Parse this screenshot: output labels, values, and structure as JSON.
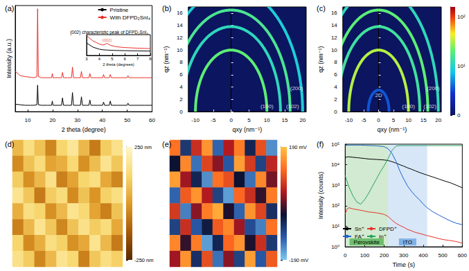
{
  "chart_data": [
    {
      "type": "line",
      "panel_label": "(a)",
      "x_label": "2 theta (degree)",
      "y_label": "Intensity (a.u.)",
      "xlim": [
        5,
        60
      ],
      "xticks": [
        10,
        20,
        30,
        40,
        50,
        60
      ],
      "ylim": [
        0,
        100
      ],
      "tick_labels": "x",
      "legend": "upper right",
      "x": [
        5,
        7,
        9,
        11,
        12.5,
        13.7,
        14.0,
        14.3,
        15.5,
        18,
        19.6,
        19.9,
        20.2,
        22,
        23.6,
        24.0,
        24.4,
        26,
        27.6,
        28.0,
        28.4,
        30,
        31.2,
        31.6,
        32.0,
        33.5,
        34.6,
        35.0,
        35.4,
        38,
        40.1,
        40.5,
        40.9,
        42,
        42.8,
        43.2,
        43.6,
        46,
        49.9,
        50.3,
        50.7,
        54,
        57,
        60
      ],
      "series": [
        {
          "name": "Pristine",
          "color": "#000000",
          "values": [
            7,
            6.5,
            6,
            6,
            6,
            6.5,
            25,
            6.5,
            6,
            6,
            6,
            10,
            6,
            6,
            6,
            13,
            6,
            6,
            6,
            18,
            6,
            6,
            6,
            14,
            6,
            6,
            6,
            11,
            6,
            6,
            6,
            9,
            6,
            6,
            6,
            10,
            6,
            6,
            6,
            8,
            6,
            6,
            6,
            6
          ]
        },
        {
          "name": "With DFPD₂SnI₄",
          "color": "#e8302a",
          "values": [
            38,
            34,
            33,
            32.5,
            32,
            33,
            97,
            33,
            32,
            32,
            32,
            36,
            32,
            32,
            32,
            37,
            32,
            32,
            32,
            42,
            32,
            32,
            32,
            38,
            32,
            32,
            32,
            36,
            32,
            32,
            32,
            35,
            32,
            32,
            32,
            35,
            32,
            32,
            32,
            34,
            32,
            32,
            32,
            32
          ]
        }
      ],
      "inset": {
        "title": "(002) characteristic peak of DFPD₂SnI₄",
        "x_label": "2 theta (degrees)",
        "xlim": [
          3,
          8
        ],
        "xticks": [
          3,
          4,
          5,
          6,
          7,
          8
        ],
        "ylim": [
          0,
          100
        ],
        "tick_labels": "x",
        "x": [
          3,
          3.5,
          4,
          4.3,
          4.6,
          4.9,
          5.3,
          6,
          7,
          8
        ],
        "series": [
          {
            "color": "#000000",
            "values": [
              60,
              40,
              30,
              27,
              26,
              25,
              24,
              23,
              22,
              21
            ]
          },
          {
            "color": "#e8302a",
            "values": [
              95,
              70,
              55,
              50,
              58,
              48,
              42,
              38,
              35,
              33
            ]
          }
        ],
        "annotations": [
          {
            "text": "(002)",
            "x": 4.6,
            "y": 60
          }
        ]
      }
    },
    {
      "type": "giwaxs",
      "panel_label": "(b)",
      "x_label": "qxy (nm⁻¹)",
      "y_label": "qz (nm⁻¹)",
      "xlim": [
        -12,
        21
      ],
      "xticks": [
        -10,
        -5,
        0,
        5,
        10,
        15,
        20
      ],
      "ylim": [
        0,
        17
      ],
      "yticks": [
        0,
        2,
        4,
        6,
        8,
        10,
        12,
        14,
        16
      ],
      "rings": {
        "q": [
          10,
          13.8,
          16.5,
          20
        ],
        "intensity": [
          1.3,
          1.05,
          1.2,
          0.95
        ]
      },
      "annotations": [
        {
          "text": "(100)",
          "x": 10,
          "y": 0.9
        },
        {
          "text": "(102)",
          "x": 17.2,
          "y": 0.9
        },
        {
          "text": "(200)",
          "x": 18.3,
          "y": 3.8
        }
      ]
    },
    {
      "type": "giwaxs",
      "panel_label": "(c)",
      "x_label": "qxy (nm⁻¹)",
      "y_label": "qz (nm⁻¹)",
      "xlim": [
        -12,
        21
      ],
      "xticks": [
        -10,
        -5,
        0,
        5,
        10,
        15,
        20
      ],
      "ylim": [
        0,
        17
      ],
      "yticks": [
        0,
        2,
        4,
        6,
        8,
        10,
        12,
        14,
        16
      ],
      "rings": {
        "q": [
          3.5,
          10,
          13.8,
          16.5,
          20
        ],
        "intensity": [
          0.55,
          1.5,
          1.15,
          1.3,
          1.05
        ]
      },
      "annotations": [
        {
          "text": "2D",
          "x": 0,
          "y": 2.6
        },
        {
          "text": "(100)",
          "x": 10,
          "y": 0.9
        },
        {
          "text": "(102)",
          "x": 17.2,
          "y": 0.9
        },
        {
          "text": "(200)",
          "x": 18.3,
          "y": 3.8
        }
      ],
      "colorbar": {
        "lim": [
          0,
          2.2
        ],
        "ticks": [
          0,
          {
            "value": 1,
            "label": "10¹"
          },
          {
            "value": 2,
            "label": "10²"
          }
        ]
      }
    },
    {
      "type": "heatmap",
      "panel_label": "(d)",
      "tick_labels": false,
      "cells": [
        [
          60,
          150,
          80,
          -40,
          120,
          180,
          60,
          -60,
          100,
          160
        ],
        [
          -30,
          80,
          140,
          20,
          40,
          130,
          -20,
          70,
          170,
          90
        ],
        [
          100,
          -20,
          60,
          160,
          -50,
          20,
          120,
          150,
          30,
          -40
        ],
        [
          170,
          90,
          -60,
          100,
          140,
          -30,
          80,
          -10,
          110,
          150
        ],
        [
          40,
          150,
          120,
          -20,
          60,
          170,
          130,
          20,
          -50,
          80
        ],
        [
          -50,
          60,
          170,
          90,
          -40,
          80,
          160,
          100,
          140,
          30
        ],
        [
          120,
          -30,
          40,
          150,
          110,
          -20,
          30,
          170,
          60,
          -60
        ],
        [
          160,
          100,
          -40,
          60,
          170,
          130,
          -50,
          90,
          150,
          110
        ]
      ],
      "colorbar": {
        "lim": [
          -250,
          250
        ],
        "ticks": [
          {
            "value": 250,
            "label": "250 nm"
          },
          {
            "value": -250,
            "label": "-250 nm"
          }
        ]
      }
    },
    {
      "type": "heatmap",
      "panel_label": "(e)",
      "tick_labels": false,
      "cells": [
        [
          120,
          -80,
          60,
          150,
          -120,
          40,
          130,
          -60,
          90,
          -150
        ],
        [
          -40,
          140,
          -130,
          80,
          20,
          -110,
          160,
          70,
          -90,
          50
        ],
        [
          160,
          30,
          -60,
          -150,
          120,
          90,
          -40,
          -130,
          140,
          10
        ],
        [
          -120,
          100,
          150,
          40,
          -90,
          -160,
          110,
          60,
          -20,
          130
        ],
        [
          70,
          -140,
          20,
          130,
          170,
          -30,
          -120,
          150,
          80,
          -70
        ],
        [
          -90,
          60,
          -110,
          -50,
          100,
          140,
          30,
          -100,
          -140,
          120
        ],
        [
          140,
          -20,
          130,
          -160,
          -60,
          110,
          150,
          -30,
          60,
          -80
        ],
        [
          30,
          150,
          -70,
          90,
          -130,
          20,
          -90,
          160,
          -110,
          100
        ]
      ],
      "colorbar": {
        "lim": [
          -190,
          190
        ],
        "ticks": [
          {
            "value": 190,
            "label": "190 mV"
          },
          {
            "value": -190,
            "label": "-190 mV"
          }
        ]
      }
    },
    {
      "type": "line",
      "panel_label": "(f)",
      "log": "y",
      "x_label": "Time (s)",
      "y_label": "Intensity (counts)",
      "xlim": [
        0,
        600
      ],
      "xticks": [
        0,
        100,
        200,
        300,
        400,
        500,
        600
      ],
      "ylim": [
        1,
        100000
      ],
      "yticks": [
        {
          "value": 1,
          "label": "10⁰"
        },
        {
          "value": 10,
          "label": "10¹"
        },
        {
          "value": 100,
          "label": "10²"
        },
        {
          "value": 1000,
          "label": "10³"
        },
        {
          "value": 10000,
          "label": "10⁴"
        },
        {
          "value": 100000,
          "label": "10⁵"
        }
      ],
      "legend": "lower left",
      "regions": [
        {
          "label": "Perovskite",
          "from": 0,
          "to": 220,
          "color": "#2ca02c"
        },
        {
          "label": "ITO",
          "from": 220,
          "to": 420,
          "color": "#4a90d9"
        }
      ],
      "x": [
        0,
        10,
        20,
        40,
        60,
        80,
        100,
        120,
        140,
        160,
        180,
        200,
        220,
        240,
        260,
        280,
        300,
        320,
        340,
        360,
        380,
        400,
        420,
        450,
        480,
        510,
        540,
        570,
        600
      ],
      "series": [
        {
          "name": "Sn⁺",
          "color": "#000000",
          "values": [
            22000,
            24000,
            24000,
            23000,
            22000,
            21000,
            20000,
            19000,
            18500,
            18000,
            17500,
            17000,
            16000,
            14000,
            12000,
            10000,
            8500,
            7000,
            6000,
            5000,
            4200,
            3600,
            3100,
            2500,
            2000,
            1600,
            1300,
            1000,
            750
          ]
        },
        {
          "name": "DFPD⁺",
          "color": "#e8302a",
          "values": [
            40,
            70,
            80,
            70,
            65,
            60,
            55,
            50,
            48,
            45,
            42,
            38,
            30,
            20,
            14,
            11,
            9,
            7,
            6,
            5,
            4.5,
            4,
            3.5,
            3,
            2.5,
            2.2,
            2,
            1.8,
            1.5
          ]
        },
        {
          "name": "FA⁺",
          "color": "#1f5fd0",
          "values": [
            80000,
            90000,
            90000,
            90000,
            90000,
            90000,
            88000,
            86000,
            85000,
            83000,
            80000,
            75000,
            60000,
            35000,
            15000,
            5000,
            2000,
            900,
            500,
            300,
            200,
            120,
            80,
            50,
            35,
            25,
            18,
            14,
            12
          ]
        },
        {
          "name": "In⁺",
          "color": "#2aa05a",
          "values": [
            3000,
            1500,
            800,
            300,
            150,
            120,
            200,
            400,
            900,
            2000,
            4500,
            9000,
            20000,
            50000,
            80000,
            85000,
            85000,
            85000,
            85000,
            85000,
            85000,
            85000,
            85000,
            85000,
            85000,
            85000,
            85000,
            85000,
            85000
          ]
        }
      ]
    }
  ]
}
